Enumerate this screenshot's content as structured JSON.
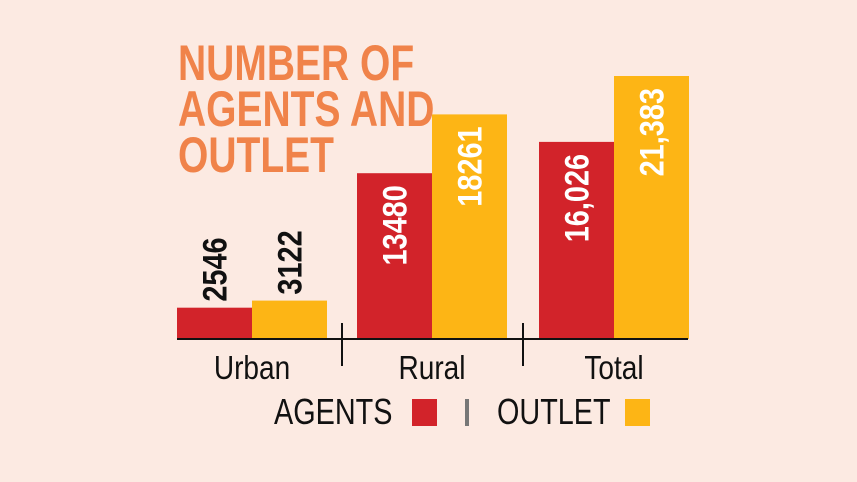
{
  "chart_data": {
    "type": "bar",
    "title": [
      "NUMBER OF",
      "AGENTS AND",
      "OUTLET"
    ],
    "categories": [
      "Urban",
      "Rural",
      "Total"
    ],
    "series": [
      {
        "name": "AGENTS",
        "values": [
          2546,
          13480,
          16026
        ],
        "labels": [
          "2546",
          "13480",
          "16,026"
        ],
        "color": "#D2232A"
      },
      {
        "name": "OUTLET",
        "values": [
          3122,
          18261,
          21383
        ],
        "labels": [
          "3122",
          "18261",
          "21,383"
        ],
        "color": "#FDB515"
      }
    ],
    "ylim": [
      0,
      21383
    ],
    "grid": false,
    "legend_placement": "bottom",
    "title_color": "#F0834A",
    "background": "#FCEAE2"
  }
}
